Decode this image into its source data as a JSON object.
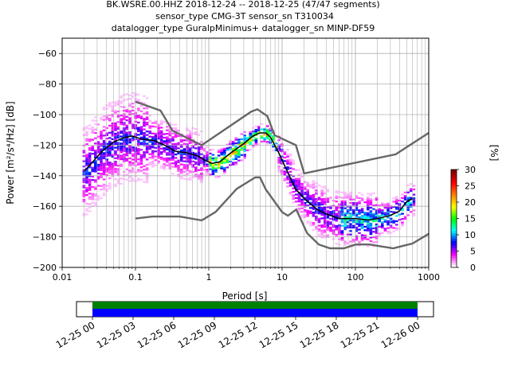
{
  "title_lines": [
    "BK.WSRE.00.HHZ   2018-12-24 -- 2018-12-25  (47/47 segments)",
    "sensor_type CMG-3T sensor_sn T310034",
    "datalogger_type GuralpMinimus+ datalogger_sn MINP-DF59"
  ],
  "chart_data": [
    {
      "type": "heatmap",
      "title": "BK.WSRE.00.HHZ   2018-12-24 -- 2018-12-25  (47/47 segments)",
      "xlabel": "Period [s]",
      "ylabel": "Power [m²/s⁴/Hz] [dB]",
      "x_scale": "log",
      "xlim": [
        0.01,
        1000
      ],
      "ylim": [
        -200,
        -50
      ],
      "x_ticks": [
        {
          "v": 0.01,
          "label": "0.01"
        },
        {
          "v": 0.1,
          "label": "0.1"
        },
        {
          "v": 1,
          "label": "1"
        },
        {
          "v": 10,
          "label": "10"
        },
        {
          "v": 100,
          "label": "100"
        },
        {
          "v": 1000,
          "label": "1000"
        }
      ],
      "y_ticks": [
        -60,
        -80,
        -100,
        -120,
        -140,
        -160,
        -180,
        -200
      ],
      "grid": true,
      "colorbar": {
        "label": "[%]",
        "range": [
          0,
          30
        ],
        "ticks": [
          0,
          5,
          10,
          15,
          20,
          25,
          30
        ],
        "colors": [
          "#ffffff",
          "#ff00ff",
          "#0000ff",
          "#00ffff",
          "#00ff00",
          "#ffff00",
          "#ff8000",
          "#ff0000",
          "#800000"
        ]
      },
      "mean_curve": {
        "color": "#000000",
        "x": [
          0.02,
          0.025,
          0.035,
          0.05,
          0.07,
          0.09,
          0.12,
          0.18,
          0.25,
          0.35,
          0.5,
          0.7,
          0.9,
          1.1,
          1.4,
          2,
          3,
          4,
          5,
          6,
          7,
          9,
          12,
          15,
          20,
          30,
          40,
          60,
          80,
          100,
          150,
          200,
          300,
          400,
          500,
          600
        ],
        "y": [
          -137,
          -132,
          -124,
          -118,
          -115,
          -114,
          -116,
          -117,
          -120,
          -124,
          -125,
          -127,
          -130,
          -132,
          -131,
          -125,
          -119,
          -114,
          -112,
          -112,
          -115,
          -125,
          -138,
          -148,
          -155,
          -162,
          -165,
          -168,
          -168,
          -168,
          -169,
          -168,
          -166,
          -163,
          -157,
          -155
        ]
      },
      "noise_models": {
        "color": "#666666",
        "high": {
          "x": [
            0.1,
            0.22,
            0.32,
            0.8,
            3.8,
            4.6,
            6.3,
            7.9,
            15.4,
            20,
            354.8,
            1000
          ],
          "y": [
            -91.5,
            -97.4,
            -110.5,
            -120,
            -98,
            -96.5,
            -101,
            -113.5,
            -120,
            -138.5,
            -126,
            -112
          ]
        },
        "low": {
          "x": [
            0.1,
            0.17,
            0.4,
            0.8,
            1.24,
            2.4,
            4.3,
            5,
            6,
            10,
            12,
            15.6,
            21.9,
            31.6,
            45,
            70,
            101,
            154,
            328,
            600,
            1000
          ],
          "y": [
            -168,
            -166.7,
            -166.7,
            -169.2,
            -163.7,
            -148.6,
            -141.1,
            -141.1,
            -149,
            -163.8,
            -166.2,
            -162.1,
            -177.5,
            -185,
            -187.5,
            -187.5,
            -185,
            -185,
            -187.5,
            -184.4,
            -178
          ]
        }
      }
    },
    {
      "type": "timeline",
      "x_tick_labels": [
        "12-25 00",
        "12-25 03",
        "12-25 06",
        "12-25 09",
        "12-25 12",
        "12-25 15",
        "12-25 18",
        "12-25 21",
        "12-26 00"
      ],
      "tracks": [
        {
          "color": "#008000",
          "start": "12-25 00",
          "end": "12-26 00"
        },
        {
          "color": "#0000ff",
          "start": "12-25 00",
          "end": "12-26 00"
        }
      ]
    }
  ]
}
